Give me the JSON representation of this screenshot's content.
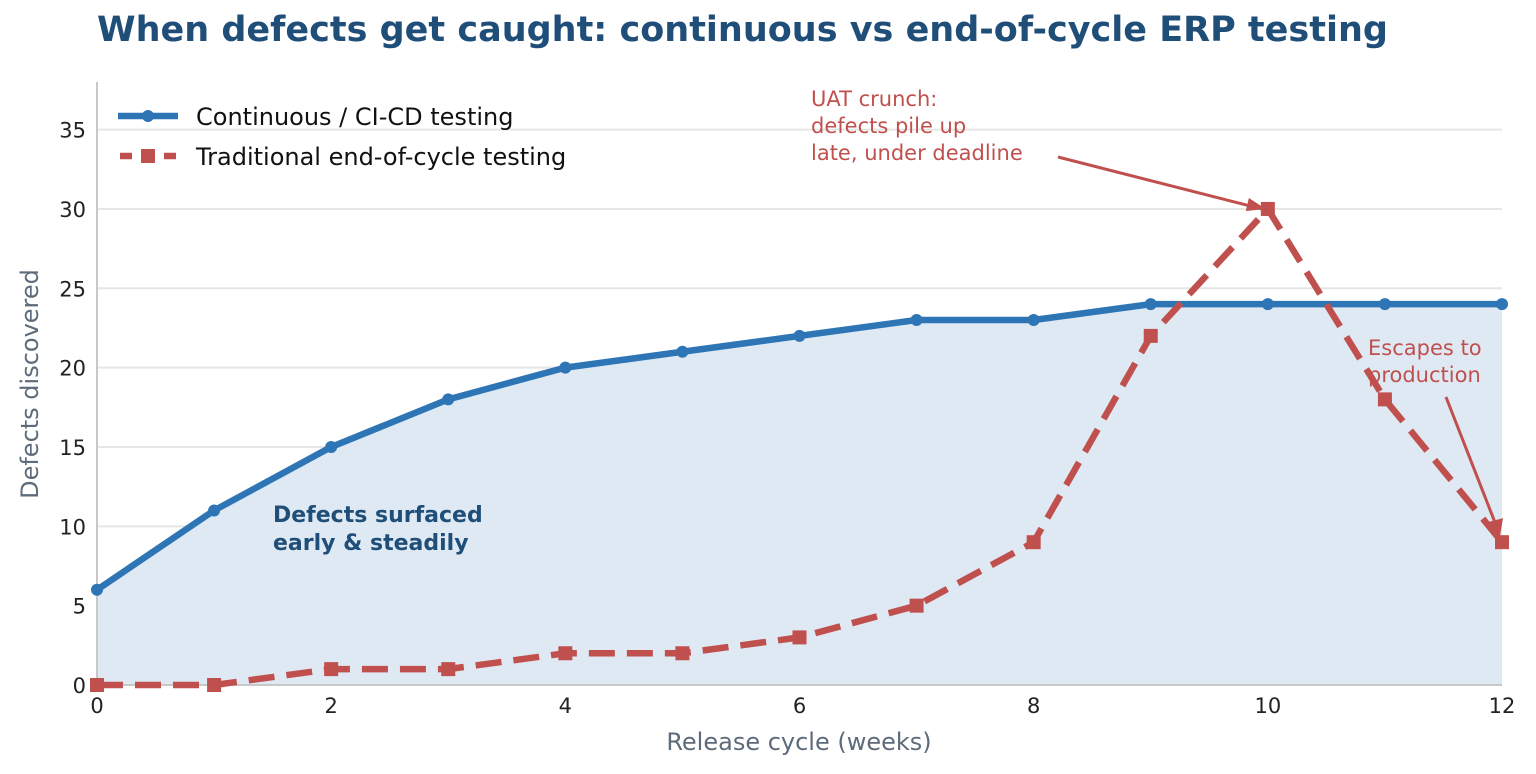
{
  "title": "When defects get caught: continuous vs end-of-cycle ERP testing",
  "chart_data": {
    "type": "line",
    "xlabel": "Release cycle (weeks)",
    "ylabel": "Defects discovered",
    "xlim": [
      0,
      12
    ],
    "ylim": [
      0,
      38
    ],
    "xticks": [
      0,
      2,
      4,
      6,
      8,
      10,
      12
    ],
    "yticks": [
      0,
      5,
      10,
      15,
      20,
      25,
      30,
      35
    ],
    "grid": "horizontal",
    "legend_position": "top-left",
    "x": [
      0,
      1,
      2,
      3,
      4,
      5,
      6,
      7,
      8,
      9,
      10,
      11,
      12
    ],
    "series": [
      {
        "name": "Continuous / CI-CD testing",
        "style": "solid-circle-filled-area",
        "color": "#2e75b6",
        "values": [
          6,
          11,
          15,
          18,
          20,
          21,
          22,
          23,
          23,
          24,
          24,
          24,
          24
        ]
      },
      {
        "name": "Traditional end-of-cycle testing",
        "style": "dashed-square",
        "color": "#c0504d",
        "values": [
          0,
          0,
          1,
          1,
          2,
          2,
          3,
          5,
          9,
          22,
          30,
          18,
          9
        ]
      }
    ],
    "annotations": [
      {
        "text": [
          "UAT crunch:",
          "defects pile up",
          "late, under deadline"
        ],
        "points_to": [
          10,
          30
        ],
        "color": "#c0504d"
      },
      {
        "text": [
          "Escapes to",
          "production"
        ],
        "points_to": [
          12,
          9
        ],
        "color": "#c0504d"
      },
      {
        "text": [
          "Defects surfaced",
          "early & steadily"
        ],
        "color": "#1f4e79"
      }
    ]
  }
}
